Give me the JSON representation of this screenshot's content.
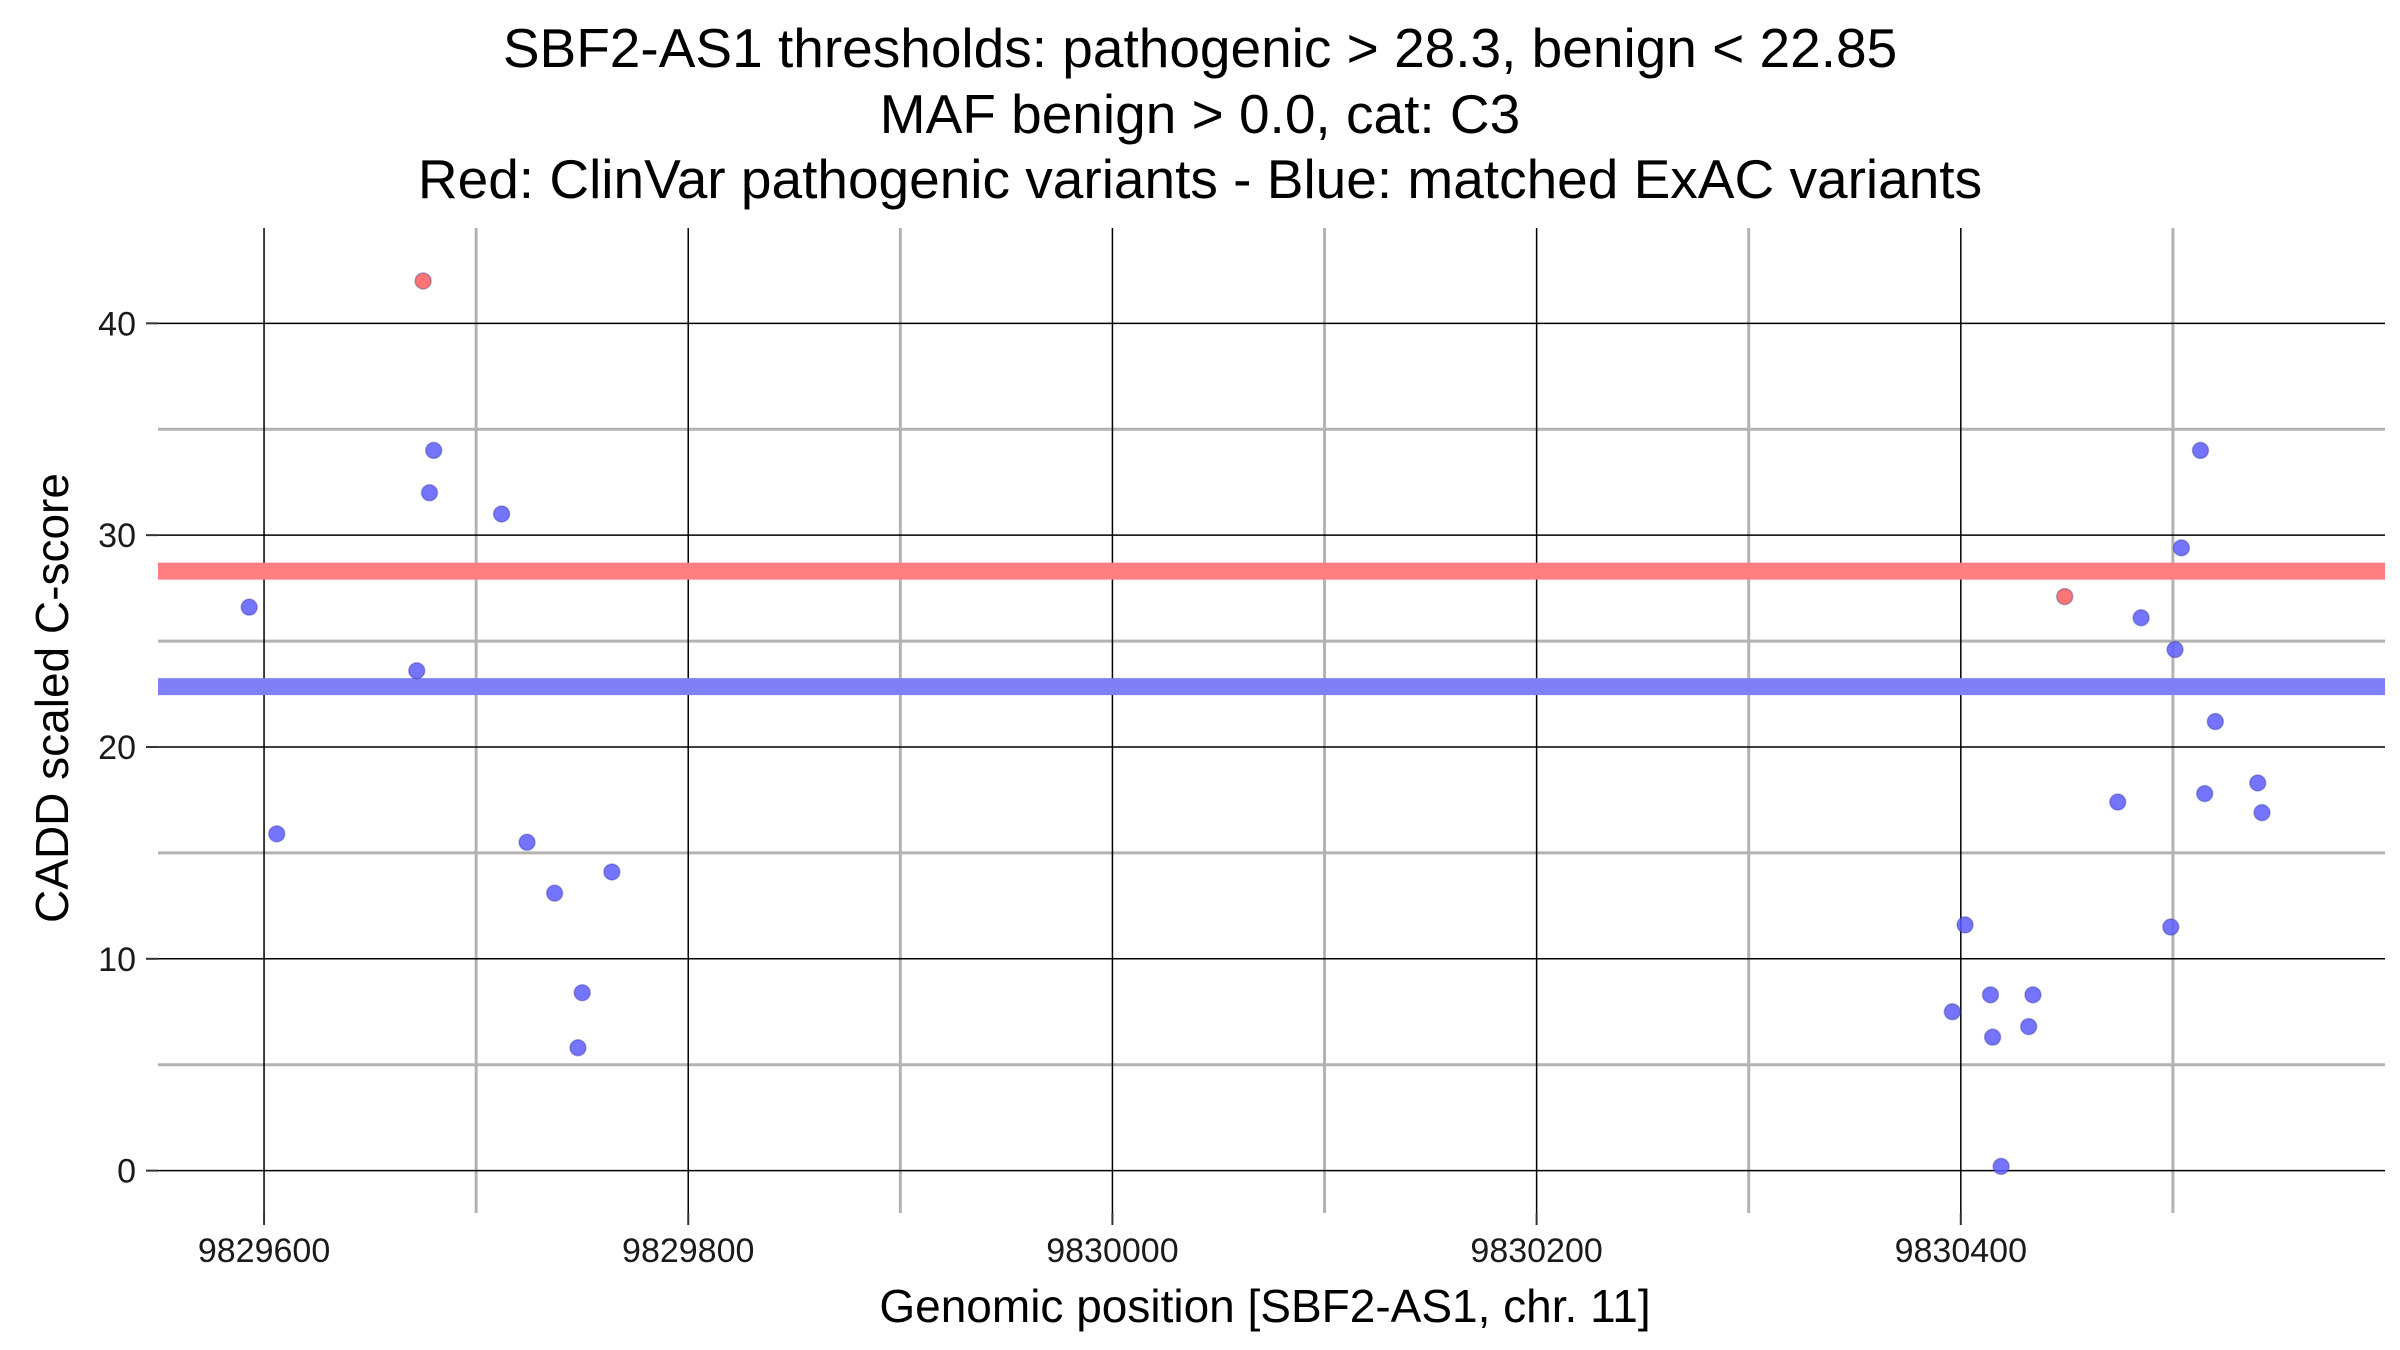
{
  "chart_data": {
    "type": "scatter",
    "title_lines": [
      "SBF2-AS1 thresholds: pathogenic > 28.3, benign < 22.85",
      "MAF benign > 0.0, cat: C3",
      "Red: ClinVar pathogenic variants - Blue: matched ExAC variants"
    ],
    "xlabel": "Genomic position [SBF2-AS1, chr. 11]",
    "ylabel": "CADD scaled C-score",
    "xlim": [
      9829550,
      9830600
    ],
    "ylim": [
      -2,
      44.5
    ],
    "x_ticks": [
      9829600,
      9829800,
      9830000,
      9830200,
      9830400
    ],
    "x_minor_ticks": [
      9829700,
      9829900,
      9830100,
      9830300,
      9830500
    ],
    "y_ticks": [
      0,
      10,
      20,
      30,
      40
    ],
    "y_minor_ticks": [
      5,
      15,
      25,
      35
    ],
    "thresholds": [
      {
        "name": "pathogenic",
        "value": 28.3,
        "color": "#ff7f80"
      },
      {
        "name": "benign",
        "value": 22.85,
        "color": "#7f7ff7"
      }
    ],
    "series": [
      {
        "name": "ClinVar pathogenic variants",
        "color": "#ff5c5c",
        "points": [
          {
            "x": 9829675,
            "y": 42.0
          },
          {
            "x": 9830449,
            "y": 27.1
          }
        ]
      },
      {
        "name": "matched ExAC variants",
        "color": "#5c5cff",
        "points": [
          {
            "x": 9829593,
            "y": 26.6
          },
          {
            "x": 9829606,
            "y": 15.9
          },
          {
            "x": 9829672,
            "y": 23.6
          },
          {
            "x": 9829678,
            "y": 32.0
          },
          {
            "x": 9829680,
            "y": 34.0
          },
          {
            "x": 9829712,
            "y": 31.0
          },
          {
            "x": 9829724,
            "y": 15.5
          },
          {
            "x": 9829737,
            "y": 13.1
          },
          {
            "x": 9829748,
            "y": 5.8
          },
          {
            "x": 9829750,
            "y": 8.4
          },
          {
            "x": 9829764,
            "y": 14.1
          },
          {
            "x": 9830396,
            "y": 7.5
          },
          {
            "x": 9830402,
            "y": 11.6
          },
          {
            "x": 9830414,
            "y": 8.3
          },
          {
            "x": 9830415,
            "y": 6.3
          },
          {
            "x": 9830419,
            "y": 0.2
          },
          {
            "x": 9830432,
            "y": 6.8
          },
          {
            "x": 9830434,
            "y": 8.3
          },
          {
            "x": 9830474,
            "y": 17.4
          },
          {
            "x": 9830485,
            "y": 26.1
          },
          {
            "x": 9830499,
            "y": 11.5
          },
          {
            "x": 9830501,
            "y": 24.6
          },
          {
            "x": 9830504,
            "y": 29.4
          },
          {
            "x": 9830513,
            "y": 34.0
          },
          {
            "x": 9830515,
            "y": 17.8
          },
          {
            "x": 9830520,
            "y": 21.2
          },
          {
            "x": 9830540,
            "y": 18.3
          },
          {
            "x": 9830542,
            "y": 16.9
          }
        ]
      }
    ]
  }
}
